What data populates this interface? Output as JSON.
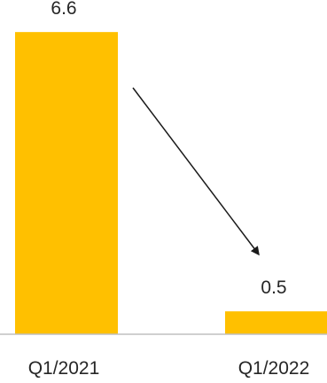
{
  "chart_data": {
    "type": "bar",
    "categories": [
      "Q1/2021",
      "Q1/2022"
    ],
    "series": [
      {
        "values": [
          6.6,
          0.5
        ],
        "data_labels": [
          "6.6",
          "0.5"
        ]
      }
    ],
    "ylim": [
      0,
      7.3
    ],
    "grid": false,
    "legend": "none",
    "annotation": "arrow pointing from the Q1/2021 bar down toward the Q1/2022 bar"
  },
  "colors": {
    "bar": "#FFC000",
    "axis": "#BFBFBF",
    "arrow": "#1a1a1a",
    "text": "#262626"
  }
}
